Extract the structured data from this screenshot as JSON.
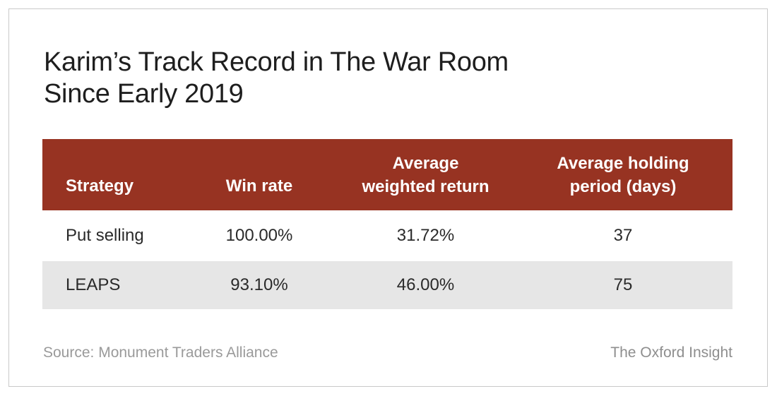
{
  "title": {
    "line1": "Karim’s Track Record in The War Room",
    "line2": "Since Early 2019"
  },
  "table": {
    "headers": [
      {
        "line1": "Strategy",
        "line2": ""
      },
      {
        "line1": "Win rate",
        "line2": ""
      },
      {
        "line1": "Average",
        "line2": "weighted return"
      },
      {
        "line1": "Average holding",
        "line2": "period (days)"
      }
    ],
    "rows": [
      {
        "strategy": "Put selling",
        "win_rate": "100.00%",
        "avg_weighted_return": "31.72%",
        "avg_holding_period": "37"
      },
      {
        "strategy": "LEAPS",
        "win_rate": "93.10%",
        "avg_weighted_return": "46.00%",
        "avg_holding_period": "75"
      }
    ],
    "header_color": "#973322",
    "shaded_row_color": "#e6e6e6"
  },
  "footer": {
    "source": "Source: Monument Traders Alliance",
    "brand": "The Oxford Insight"
  }
}
